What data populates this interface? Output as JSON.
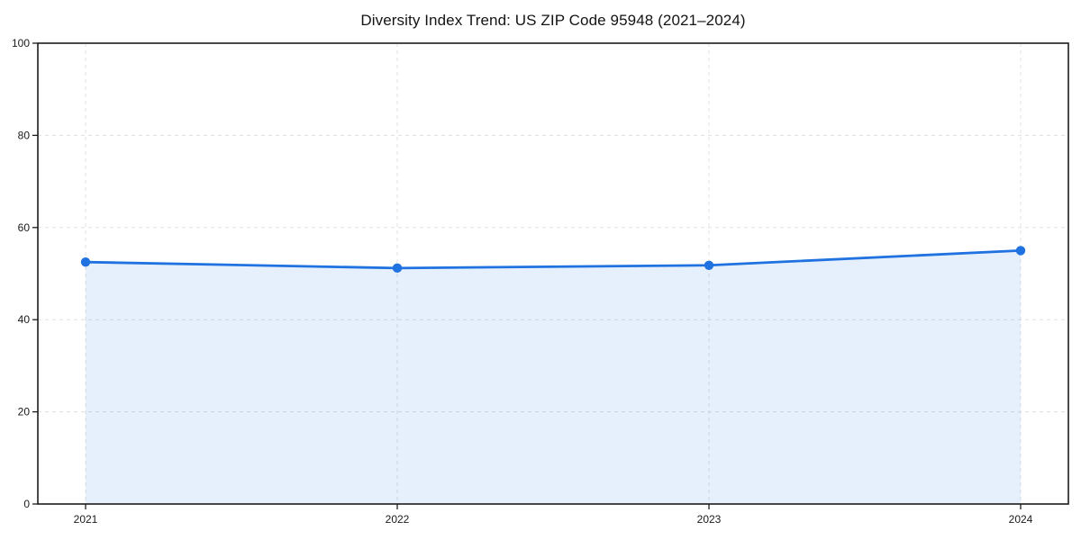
{
  "title": "Diversity Index Trend: US ZIP Code 95948 (2021–2024)",
  "colors": {
    "line": "#1f72e0",
    "marker": "#1f72e0",
    "area_fill": "rgba(31,114,224,0.11)",
    "grid": "#e0e0e0",
    "spine": "#1c1c1c",
    "tick": "#1c1c1c",
    "tick_label": "#1a1a1a",
    "background": "#ffffff"
  },
  "chart_data": {
    "type": "area",
    "title": "Diversity Index Trend: US ZIP Code 95948 (2021–2024)",
    "categories": [
      "2021",
      "2022",
      "2023",
      "2024"
    ],
    "series": [
      {
        "name": "Diversity Index",
        "values": [
          52.5,
          51.2,
          51.8,
          55.0
        ]
      }
    ],
    "xlabel": "",
    "ylabel": "",
    "ylim": [
      0,
      100
    ],
    "yticks": [
      0,
      20,
      40,
      60,
      80,
      100
    ],
    "ytick_labels": [
      "0",
      "20",
      "40",
      "60",
      "80",
      "100"
    ],
    "grid": true,
    "grid_style": "dashed",
    "legend_position": "none",
    "marker": "circle",
    "area_from": "first_to_last_point_down_to_zero"
  }
}
